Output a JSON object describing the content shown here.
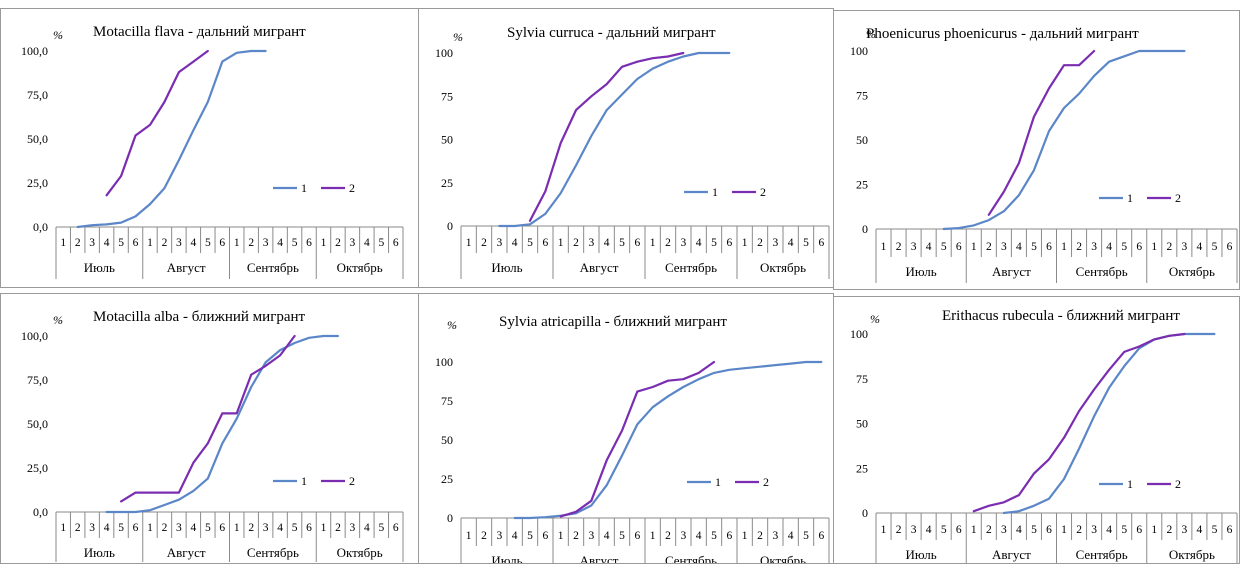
{
  "colors": {
    "series1": "#5B86C8",
    "series2": "#7A2DB0",
    "axis": "#8a8a8a"
  },
  "x_axis": {
    "decades": [
      "1",
      "2",
      "3",
      "4",
      "5",
      "6"
    ],
    "months": [
      "Июль",
      "Август",
      "Сентябрь",
      "Октябрь"
    ]
  },
  "legend": [
    "1",
    "2"
  ],
  "chart_data": [
    {
      "type": "line",
      "title": "Motacilla flava - дальний мигрант",
      "ylabel": "%",
      "ylim": [
        0,
        100
      ],
      "yticks": [
        "0,0",
        "25,0",
        "50,0",
        "75,0",
        "100,0"
      ],
      "x": [
        "Июль 1",
        "Июль 2",
        "Июль 3",
        "Июль 4",
        "Июль 5",
        "Июль 6",
        "Август 1",
        "Август 2",
        "Август 3",
        "Август 4",
        "Август 5",
        "Август 6",
        "Сентябрь 1",
        "Сентябрь 2",
        "Сентябрь 3",
        "Сентябрь 4",
        "Сентябрь 5",
        "Сентябрь 6",
        "Октябрь 1",
        "Октябрь 2",
        "Октябрь 3",
        "Октябрь 4",
        "Октябрь 5",
        "Октябрь 6"
      ],
      "series": [
        {
          "name": "1",
          "values": [
            null,
            0,
            1,
            1.5,
            2.5,
            6,
            13,
            22,
            38,
            55,
            71,
            94,
            99,
            100,
            100,
            null,
            null,
            null,
            null,
            null,
            null,
            null,
            null,
            null
          ]
        },
        {
          "name": "2",
          "values": [
            null,
            null,
            null,
            18,
            29,
            52,
            58,
            71,
            88,
            94,
            100,
            null,
            null,
            null,
            null,
            null,
            null,
            null,
            null,
            null,
            null,
            null,
            null,
            null
          ]
        }
      ]
    },
    {
      "type": "line",
      "title": "Sylvia curruca - дальний мигрант",
      "ylabel": "%",
      "ylim": [
        0,
        100
      ],
      "yticks": [
        "0",
        "25",
        "50",
        "75",
        "100"
      ],
      "x": [
        "Июль 1",
        "Июль 2",
        "Июль 3",
        "Июль 4",
        "Июль 5",
        "Июль 6",
        "Август 1",
        "Август 2",
        "Август 3",
        "Август 4",
        "Август 5",
        "Август 6",
        "Сентябрь 1",
        "Сентябрь 2",
        "Сентябрь 3",
        "Сентябрь 4",
        "Сентябрь 5",
        "Сентябрь 6",
        "Октябрь 1",
        "Октябрь 2",
        "Октябрь 3",
        "Октябрь 4",
        "Октябрь 5",
        "Октябрь 6"
      ],
      "series": [
        {
          "name": "1",
          "values": [
            null,
            null,
            0,
            0,
            1,
            7,
            19,
            35,
            52,
            67,
            76,
            85,
            91,
            95,
            98,
            100,
            100,
            100,
            null,
            null,
            null,
            null,
            null,
            null
          ]
        },
        {
          "name": "2",
          "values": [
            null,
            null,
            null,
            null,
            3,
            20,
            48,
            67,
            75,
            82,
            92,
            95,
            97,
            98,
            100,
            null,
            null,
            null,
            null,
            null,
            null,
            null,
            null,
            null
          ]
        }
      ]
    },
    {
      "type": "line",
      "title": "Phoenicurus phoenicurus - дальний мигрант",
      "ylabel": "%",
      "ylim": [
        0,
        100
      ],
      "yticks": [
        "0",
        "25",
        "50",
        "75",
        "100"
      ],
      "x": [
        "Июль 1",
        "Июль 2",
        "Июль 3",
        "Июль 4",
        "Июль 5",
        "Июль 6",
        "Август 1",
        "Август 2",
        "Август 3",
        "Август 4",
        "Август 5",
        "Август 6",
        "Сентябрь 1",
        "Сентябрь 2",
        "Сентябрь 3",
        "Сентябрь 4",
        "Сентябрь 5",
        "Сентябрь 6",
        "Октябрь 1",
        "Октябрь 2",
        "Октябрь 3",
        "Октябрь 4",
        "Октябрь 5",
        "Октябрь 6"
      ],
      "series": [
        {
          "name": "1",
          "values": [
            null,
            null,
            null,
            null,
            0,
            0.5,
            2,
            5,
            10,
            19,
            33,
            55,
            68,
            76,
            86,
            94,
            97,
            100,
            100,
            100,
            100,
            null,
            null,
            null
          ]
        },
        {
          "name": "2",
          "values": [
            null,
            null,
            null,
            null,
            null,
            null,
            null,
            8,
            21,
            37,
            63,
            79,
            92,
            92,
            100,
            null,
            null,
            null,
            null,
            null,
            null,
            null,
            null,
            null
          ]
        }
      ]
    },
    {
      "type": "line",
      "title": "Motacilla alba - ближний мигрант",
      "ylabel": "%",
      "ylim": [
        0,
        100
      ],
      "yticks": [
        "0,0",
        "25,0",
        "50,0",
        "75,0",
        "100,0"
      ],
      "x": [
        "Июль 1",
        "Июль 2",
        "Июль 3",
        "Июль 4",
        "Июль 5",
        "Июль 6",
        "Август 1",
        "Август 2",
        "Август 3",
        "Август 4",
        "Август 5",
        "Август 6",
        "Сентябрь 1",
        "Сентябрь 2",
        "Сентябрь 3",
        "Сентябрь 4",
        "Сентябрь 5",
        "Сентябрь 6",
        "Октябрь 1",
        "Октябрь 2",
        "Октябрь 3",
        "Октябрь 4",
        "Октябрь 5",
        "Октябрь 6"
      ],
      "series": [
        {
          "name": "1",
          "values": [
            null,
            null,
            null,
            0,
            0,
            0,
            1,
            4,
            7,
            12,
            19,
            39,
            53,
            71,
            85,
            92,
            96,
            99,
            100,
            100,
            null,
            null,
            null,
            null
          ]
        },
        {
          "name": "2",
          "values": [
            null,
            null,
            null,
            null,
            6,
            11,
            11,
            11,
            11,
            28,
            39,
            56,
            56,
            78,
            83,
            89,
            100,
            null,
            null,
            null,
            null,
            null,
            null,
            null
          ]
        }
      ]
    },
    {
      "type": "line",
      "title": "Sylvia atricapilla - ближний мигрант",
      "ylabel": "%",
      "ylim": [
        0,
        100
      ],
      "yticks": [
        "0",
        "25",
        "50",
        "75",
        "100"
      ],
      "x": [
        "Июль 1",
        "Июль 2",
        "Июль 3",
        "Июль 4",
        "Июль 5",
        "Июль 6",
        "Август 1",
        "Август 2",
        "Август 3",
        "Август 4",
        "Август 5",
        "Август 6",
        "Сентябрь 1",
        "Сентябрь 2",
        "Сентябрь 3",
        "Сентябрь 4",
        "Сентябрь 5",
        "Сентябрь 6",
        "Октябрь 1",
        "Октябрь 2",
        "Октябрь 3",
        "Октябрь 4",
        "Октябрь 5",
        "Октябрь 6"
      ],
      "series": [
        {
          "name": "1",
          "values": [
            null,
            null,
            null,
            0,
            0,
            0.5,
            1.5,
            3,
            8,
            21,
            40,
            60,
            71,
            78,
            84,
            89,
            93,
            95,
            96,
            97,
            98,
            99,
            100,
            100
          ]
        },
        {
          "name": "2",
          "values": [
            null,
            null,
            null,
            null,
            null,
            null,
            1,
            4,
            11,
            37,
            56,
            81,
            84,
            88,
            89,
            93,
            100,
            null,
            null,
            null,
            null,
            null,
            null,
            null
          ]
        }
      ]
    },
    {
      "type": "line",
      "title": "Erithacus rubecula - ближний мигрант",
      "ylabel": "%",
      "ylim": [
        0,
        100
      ],
      "yticks": [
        "0",
        "25",
        "50",
        "75",
        "100"
      ],
      "x": [
        "Июль 1",
        "Июль 2",
        "Июль 3",
        "Июль 4",
        "Июль 5",
        "Июль 6",
        "Август 1",
        "Август 2",
        "Август 3",
        "Август 4",
        "Август 5",
        "Август 6",
        "Сентябрь 1",
        "Сентябрь 2",
        "Сентябрь 3",
        "Сентябрь 4",
        "Сентябрь 5",
        "Сентябрь 6",
        "Октябрь 1",
        "Октябрь 2",
        "Октябрь 3",
        "Октябрь 4",
        "Октябрь 5",
        "Октябрь 6"
      ],
      "series": [
        {
          "name": "1",
          "values": [
            null,
            null,
            null,
            null,
            null,
            null,
            null,
            null,
            0,
            1,
            4,
            8,
            19,
            36,
            54,
            70,
            82,
            92,
            97,
            99,
            100,
            100,
            100,
            null
          ]
        },
        {
          "name": "2",
          "values": [
            null,
            null,
            null,
            null,
            null,
            null,
            1,
            4,
            6,
            10,
            22,
            30,
            42,
            57,
            69,
            80,
            90,
            93,
            97,
            99,
            100,
            null,
            null,
            null
          ]
        }
      ]
    }
  ]
}
